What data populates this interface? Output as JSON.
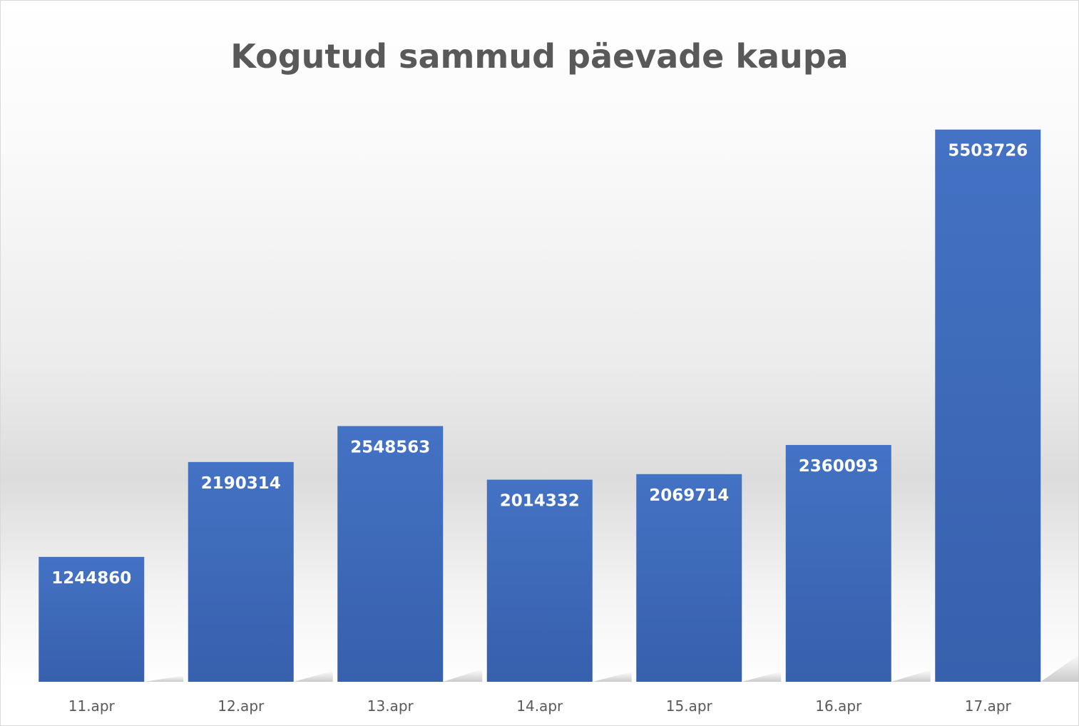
{
  "chart_data": {
    "type": "bar",
    "title": "Kogutud sammud päevade kaupa",
    "categories": [
      "11.apr",
      "12.apr",
      "13.apr",
      "14.apr",
      "15.apr",
      "16.apr",
      "17.apr"
    ],
    "values": [
      1244860,
      2190314,
      2548563,
      2014332,
      2069714,
      2360093,
      5503726
    ],
    "data_labels": [
      "1244860",
      "2190314",
      "2548563",
      "2014332",
      "2069714",
      "2360093",
      "5503726"
    ],
    "xlabel": "",
    "ylabel": "",
    "ylim": [
      0,
      5800000
    ],
    "grid": false,
    "legend": "none",
    "colors": {
      "bar_top": "#4472c4",
      "bar_bottom": "#3760ad",
      "label": "#ffffff",
      "title": "#595959",
      "tick": "#595959"
    }
  }
}
